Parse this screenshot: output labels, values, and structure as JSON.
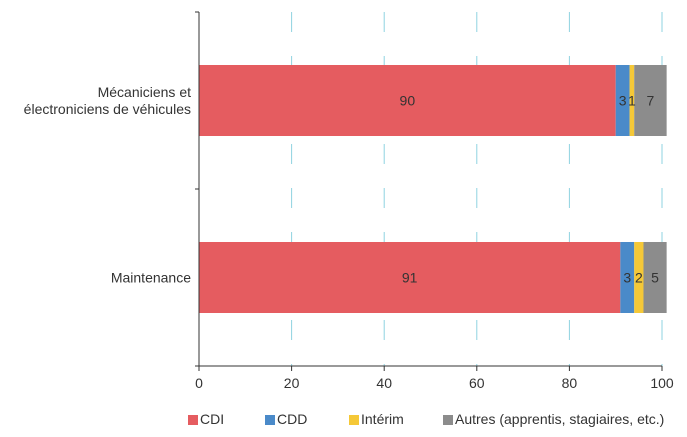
{
  "chart_data": {
    "type": "bar",
    "orientation": "horizontal",
    "stacked": true,
    "categories": [
      [
        "Mécaniciens et",
        "électroniciens de véhicules"
      ],
      [
        "Maintenance"
      ]
    ],
    "series": [
      {
        "name": "CDI",
        "values": [
          90,
          91
        ],
        "color": "#e55c60"
      },
      {
        "name": "CDD",
        "values": [
          3,
          3
        ],
        "color": "#4a8ac9"
      },
      {
        "name": "Intérim",
        "values": [
          1,
          2
        ],
        "color": "#f5c837"
      },
      {
        "name": "Autres (apprentis, stagiaires, etc.)",
        "values": [
          7,
          5
        ],
        "color": "#8c8c8c"
      }
    ],
    "data_labels": [
      [
        "90",
        "91"
      ],
      [
        "3",
        "3"
      ],
      [
        "1",
        "2"
      ],
      [
        "7",
        "5"
      ]
    ],
    "xlim": [
      0,
      100
    ],
    "xticks": [
      0,
      20,
      40,
      60,
      80,
      100
    ],
    "grid": "vertical dashed",
    "grid_color": "#8fd3e0",
    "legend_position": "bottom",
    "title": "",
    "xlabel": "",
    "ylabel": ""
  }
}
